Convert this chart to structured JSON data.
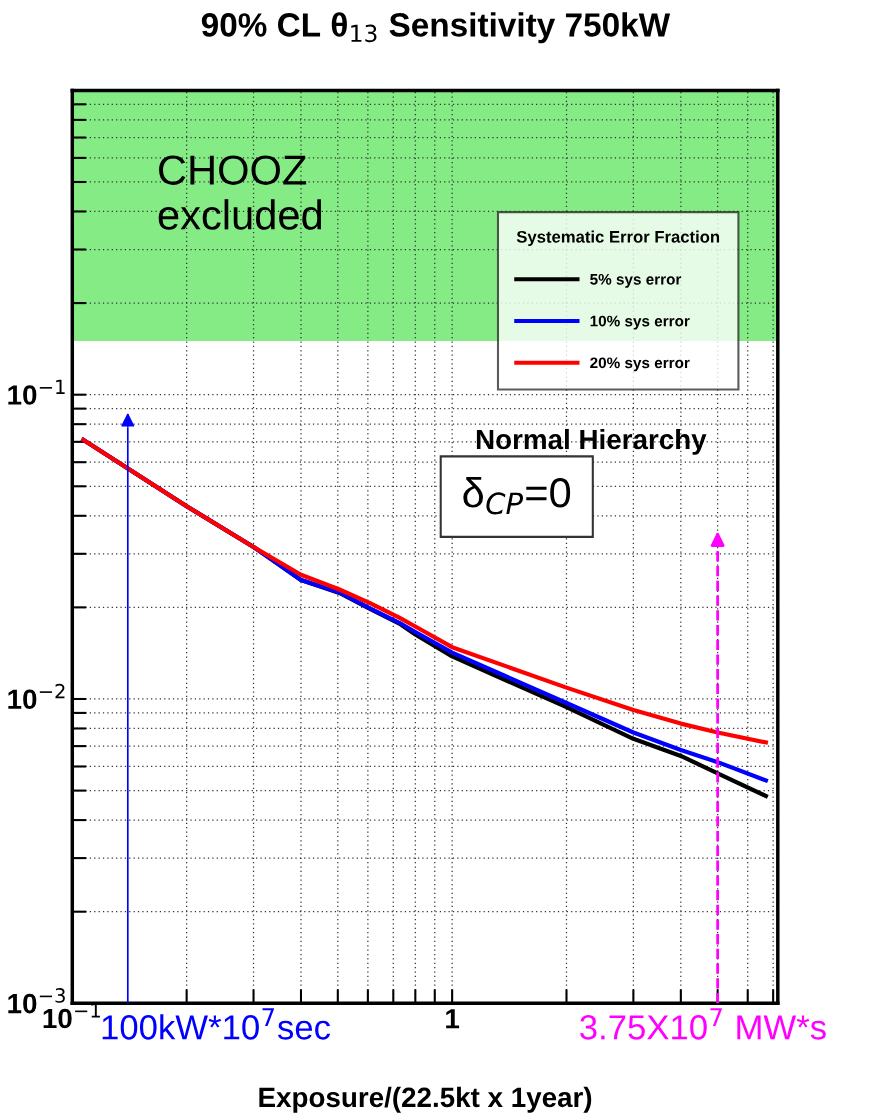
{
  "chart_data": {
    "type": "line",
    "title": "90% CL θ$_{13}$ Sensitivity 750kW",
    "xlabel": "Exposure/(22.5kt x 1year)",
    "legend_title": "Systematic Error Fraction",
    "log": "xy",
    "grid": true,
    "legend": "top right",
    "line_style": "solid",
    "marker": "none",
    "xlim": [
      0.1,
      7.2
    ],
    "ylim": [
      0.001,
      1
    ],
    "xticks": [
      {
        "value": 0.1,
        "label": "10$^{−1}$"
      },
      {
        "value": 0.2,
        "label": null
      },
      {
        "value": 0.3,
        "label": null
      },
      {
        "value": 0.4,
        "label": null
      },
      {
        "value": 0.5,
        "label": null
      },
      {
        "value": 0.6,
        "label": null
      },
      {
        "value": 0.7,
        "label": null
      },
      {
        "value": 0.8,
        "label": null
      },
      {
        "value": 0.9,
        "label": null
      },
      {
        "value": 1,
        "label": "1"
      },
      {
        "value": 2,
        "label": null
      },
      {
        "value": 3,
        "label": null
      },
      {
        "value": 4,
        "label": null
      },
      {
        "value": 5,
        "label": null
      },
      {
        "value": 6,
        "label": null
      },
      {
        "value": 7,
        "label": null
      }
    ],
    "yticks": [
      {
        "value": 0.001,
        "label": "10$^{−3}$"
      },
      {
        "value": 0.002,
        "label": null
      },
      {
        "value": 0.003,
        "label": null
      },
      {
        "value": 0.004,
        "label": null
      },
      {
        "value": 0.005,
        "label": null
      },
      {
        "value": 0.006,
        "label": null
      },
      {
        "value": 0.007,
        "label": null
      },
      {
        "value": 0.008,
        "label": null
      },
      {
        "value": 0.009,
        "label": null
      },
      {
        "value": 0.01,
        "label": "10$^{−2}$"
      },
      {
        "value": 0.02,
        "label": null
      },
      {
        "value": 0.03,
        "label": null
      },
      {
        "value": 0.04,
        "label": null
      },
      {
        "value": 0.05,
        "label": null
      },
      {
        "value": 0.06,
        "label": null
      },
      {
        "value": 0.07,
        "label": null
      },
      {
        "value": 0.08,
        "label": null
      },
      {
        "value": 0.09,
        "label": null
      },
      {
        "value": 0.1,
        "label": "10$^{−1}$"
      },
      {
        "value": 0.2,
        "label": null
      },
      {
        "value": 0.3,
        "label": null
      },
      {
        "value": 0.4,
        "label": null
      },
      {
        "value": 0.5,
        "label": null
      },
      {
        "value": 0.6,
        "label": null
      },
      {
        "value": 0.7,
        "label": null
      },
      {
        "value": 0.8,
        "label": null
      },
      {
        "value": 0.9,
        "label": null
      }
    ],
    "x": [
      0.107,
      0.2,
      0.3,
      0.4,
      0.505,
      0.606,
      0.726,
      0.8,
      1,
      2,
      3,
      4,
      5,
      6.7
    ],
    "series": [
      {
        "name": "5% sys error",
        "color": "#000000",
        "values": [
          0.071,
          0.043,
          0.0316,
          0.0246,
          0.0223,
          0.0198,
          0.0177,
          0.0163,
          0.0138,
          0.0094,
          0.0074,
          0.0065,
          0.0057,
          0.0048
        ]
      },
      {
        "name": "10% sys error",
        "color": "#0000ff",
        "values": [
          0.071,
          0.043,
          0.0316,
          0.0246,
          0.0224,
          0.0199,
          0.0178,
          0.0166,
          0.0142,
          0.0097,
          0.00776,
          0.0068,
          0.0062,
          0.0054
        ]
      },
      {
        "name": "20% sys error",
        "color": "#ff0000",
        "values": [
          0.071,
          0.043,
          0.0316,
          0.0256,
          0.0229,
          0.0207,
          0.0185,
          0.0173,
          0.0148,
          0.0109,
          0.0092,
          0.0083,
          0.00776,
          0.0072
        ]
      }
    ],
    "bands": [
      {
        "axis": "y",
        "from": 0.15,
        "to": 1,
        "label": "CHOOZ\nexcluded",
        "color": "#33dd33"
      }
    ],
    "ref_lines": [
      {
        "axis": "x",
        "value": 0.14,
        "label": "100kW*10$^{7}$sec",
        "color": "#0000ff",
        "line_style": "solid"
      },
      {
        "axis": "x",
        "value": 5,
        "label": "3.75X10$^{7}$ MW*s",
        "color": "#ff00ff",
        "line_style": "dashed"
      }
    ],
    "annotations": [
      "Normal Hierarchy",
      "δ$_{CP}$=0"
    ]
  }
}
